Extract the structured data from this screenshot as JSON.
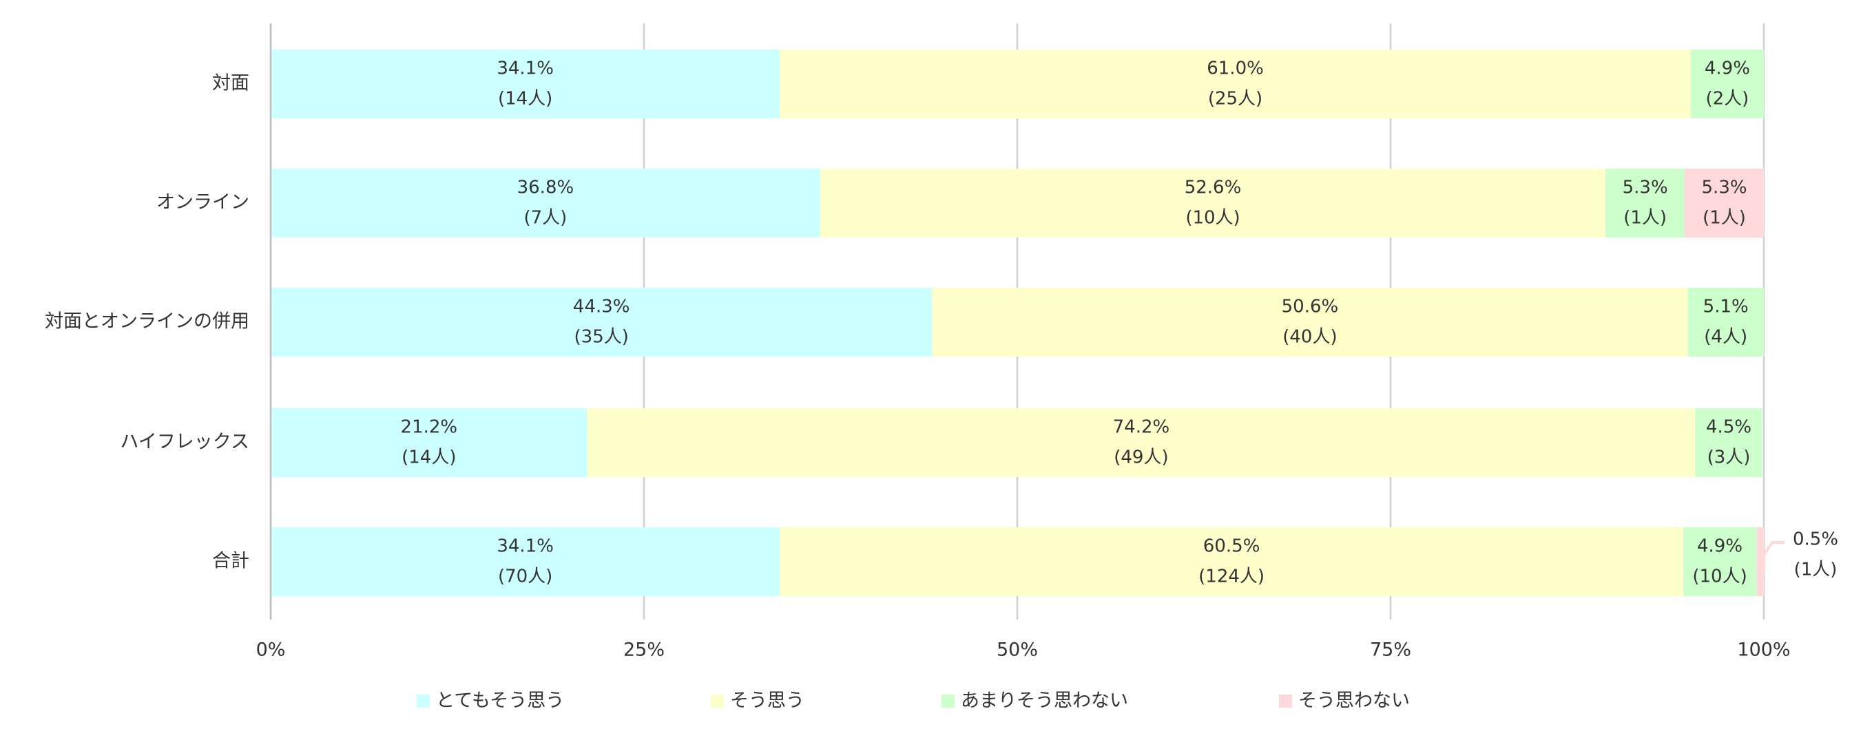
{
  "chart_data": {
    "type": "stacked_bar_horizontal",
    "categories": [
      "対面",
      "オンライン",
      "対面とオンラインの併用",
      "ハイフレックス",
      "合計"
    ],
    "series": [
      {
        "name": "とてもそう思う",
        "color": "#ccffff",
        "values": [
          34.1,
          36.8,
          44.3,
          21.2,
          34.1
        ],
        "value_labels": [
          "34.1%",
          "36.8%",
          "44.3%",
          "21.2%",
          "34.1%"
        ],
        "count_labels": [
          "(14人)",
          "(7人)",
          "(35人)",
          "(14人)",
          "(70人)"
        ]
      },
      {
        "name": "そう思う",
        "color": "#ffffcc",
        "values": [
          61.0,
          52.6,
          50.6,
          74.2,
          60.5
        ],
        "value_labels": [
          "61.0%",
          "52.6%",
          "50.6%",
          "74.2%",
          "60.5%"
        ],
        "count_labels": [
          "(25人)",
          "(10人)",
          "(40人)",
          "(49人)",
          "(124人)"
        ]
      },
      {
        "name": "あまりそう思わない",
        "color": "#ccffcc",
        "values": [
          4.9,
          5.3,
          5.1,
          4.5,
          4.9
        ],
        "value_labels": [
          "4.9%",
          "5.3%",
          "5.1%",
          "4.5%",
          "4.9%"
        ],
        "count_labels": [
          "(2人)",
          "(1人)",
          "(4人)",
          "(3人)",
          "(10人)"
        ]
      },
      {
        "name": "そう思わない",
        "color": "#ffd9d9",
        "values": [
          0,
          5.3,
          0,
          0,
          0.5
        ],
        "value_labels": [
          null,
          "5.3%",
          null,
          null,
          "0.5%"
        ],
        "count_labels": [
          null,
          "(1人)",
          null,
          null,
          "(1人)"
        ]
      }
    ],
    "xlim": [
      0,
      100
    ],
    "xticks": [
      {
        "value": 0,
        "label": "0%"
      },
      {
        "value": 25,
        "label": "25%"
      },
      {
        "value": 50,
        "label": "50%"
      },
      {
        "value": 75,
        "label": "75%"
      },
      {
        "value": 100,
        "label": "100%"
      }
    ],
    "grid": true,
    "legend": "bottom"
  }
}
